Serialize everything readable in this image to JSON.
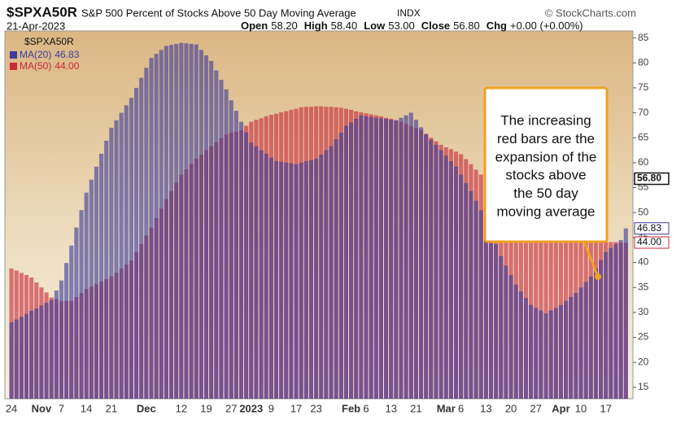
{
  "chart_data": {
    "type": "bar",
    "symbol": "$SPXA50R",
    "title": "S&P 500 Percent of Stocks Above 50 Day Moving Average",
    "exchange": "INDX",
    "source": "© StockCharts.com",
    "date": "21-Apr-2023",
    "quote": [
      {
        "label": "Open",
        "value": "58.20"
      },
      {
        "label": "High",
        "value": "58.40"
      },
      {
        "label": "Low",
        "value": "53.00"
      },
      {
        "label": "Close",
        "value": "56.80"
      },
      {
        "label": "Chg",
        "value": "+0.00 (+0.00%)"
      }
    ],
    "legend_title": "$SPXA50R",
    "last_close": {
      "value": 56.8,
      "label": "56.80"
    },
    "categories": [
      "24",
      null,
      null,
      null,
      null,
      null,
      "Nov",
      null,
      null,
      null,
      "7",
      null,
      null,
      null,
      null,
      "14",
      null,
      null,
      null,
      null,
      "21",
      null,
      null,
      null,
      null,
      null,
      null,
      "Dec",
      null,
      null,
      null,
      null,
      null,
      null,
      "12",
      null,
      null,
      null,
      null,
      "19",
      null,
      null,
      null,
      null,
      "27",
      null,
      null,
      null,
      "2023",
      null,
      null,
      null,
      "9",
      null,
      null,
      null,
      null,
      "17",
      null,
      null,
      null,
      "23",
      null,
      null,
      null,
      null,
      null,
      null,
      "Feb",
      null,
      null,
      "6",
      null,
      null,
      null,
      null,
      "13",
      null,
      null,
      null,
      null,
      "21",
      null,
      null,
      null,
      null,
      null,
      "Mar",
      null,
      null,
      "6",
      null,
      null,
      null,
      null,
      "13",
      null,
      null,
      null,
      null,
      "20",
      null,
      null,
      null,
      null,
      "27",
      null,
      null,
      null,
      null,
      "Apr",
      null,
      null,
      null,
      "10",
      null,
      null,
      null,
      null,
      "17",
      null,
      null,
      null,
      null
    ],
    "series": [
      {
        "name": "MA(50)",
        "last_label": "44.00",
        "color": "#c8283c",
        "values": [
          38.8,
          38.4,
          37.9,
          37.5,
          37,
          36,
          35,
          34,
          33,
          32.7,
          32.3,
          32.3,
          32.3,
          33.1,
          33.9,
          34.7,
          35.2,
          35.7,
          36.2,
          36.7,
          37.2,
          38,
          38.8,
          39.6,
          40.4,
          42.1,
          43.7,
          45.4,
          47,
          48.9,
          50.8,
          52.7,
          54.3,
          56,
          57.6,
          58.7,
          59.7,
          60.8,
          61.6,
          62.5,
          63.3,
          64.1,
          64.9,
          65.7,
          66,
          66.2,
          66.5,
          67.4,
          68.2,
          68.6,
          68.9,
          69.3,
          69.6,
          69.8,
          70.1,
          70.3,
          70.6,
          70.8,
          71.1,
          71.2,
          71.2,
          71.3,
          71.3,
          71.2,
          71.2,
          71.1,
          71,
          70.8,
          70.6,
          70.3,
          70.1,
          69.9,
          69.7,
          69.5,
          69.3,
          69,
          68.8,
          68.5,
          68.2,
          67.8,
          67.3,
          66.9,
          66.5,
          65.8,
          65,
          64.3,
          63.6,
          63.1,
          62.7,
          62.2,
          61.7,
          60.7,
          59.7,
          58.6,
          57.6,
          56,
          54.3,
          52.7,
          51,
          49.7,
          48.3,
          47,
          46.4,
          45.9,
          45.3,
          45.1,
          44.9,
          44.7,
          44.5,
          44.5,
          44.4,
          44.4,
          44.4,
          44.3,
          44.3,
          44.3,
          44.2,
          44.2,
          44.2,
          44.1,
          44.1,
          44.1,
          44,
          44
        ]
      },
      {
        "name": "MA(20)",
        "last_label": "46.83",
        "color": "#3c3c9c",
        "values": [
          28,
          28.6,
          29.1,
          29.7,
          30.3,
          30.8,
          31.4,
          31.9,
          32.5,
          34.4,
          36.4,
          39.9,
          43.4,
          47,
          50.5,
          54,
          56.6,
          59.2,
          61.8,
          64.4,
          67,
          68.5,
          70,
          71.5,
          73,
          75,
          77,
          79,
          81,
          81.8,
          82.6,
          83.4,
          83.6,
          83.8,
          84,
          83.9,
          83.8,
          83.7,
          82.6,
          81.5,
          80.4,
          78.5,
          76.6,
          74.7,
          72.5,
          70.4,
          68.2,
          66.1,
          64,
          63.3,
          62.5,
          61.8,
          61,
          60.3,
          60.2,
          60,
          59.9,
          59.7,
          60,
          60.3,
          60.5,
          60.8,
          61.6,
          62.5,
          63.3,
          64.7,
          66,
          67.4,
          68.1,
          68.8,
          69.5,
          69.3,
          69.2,
          69,
          68.9,
          68.8,
          68.6,
          68.5,
          69,
          69.5,
          70,
          68.6,
          67.1,
          65.7,
          64.6,
          63.6,
          62.5,
          61.4,
          60.3,
          59.2,
          57.6,
          55.9,
          54.3,
          52.4,
          50.5,
          48.6,
          46.2,
          43.7,
          41.3,
          39.4,
          37.5,
          35.6,
          34.2,
          32.9,
          31.5,
          30.9,
          30.4,
          29.8,
          30.4,
          30.9,
          31.5,
          32.3,
          33.1,
          33.9,
          35,
          36.1,
          37.2,
          38.8,
          40.5,
          42.1,
          42.9,
          43.7,
          44.5,
          46.83
        ]
      }
    ],
    "ylim": [
      12.7,
      86.4
    ],
    "yticks": [
      15,
      20,
      25,
      30,
      35,
      40,
      45,
      50,
      55,
      60,
      65,
      70,
      75,
      80,
      85
    ],
    "grid": false,
    "annotation": {
      "lines": [
        "The increasing",
        "red bars are the",
        "expansion of the",
        "stocks above",
        "the 50 day",
        "moving average"
      ]
    }
  }
}
